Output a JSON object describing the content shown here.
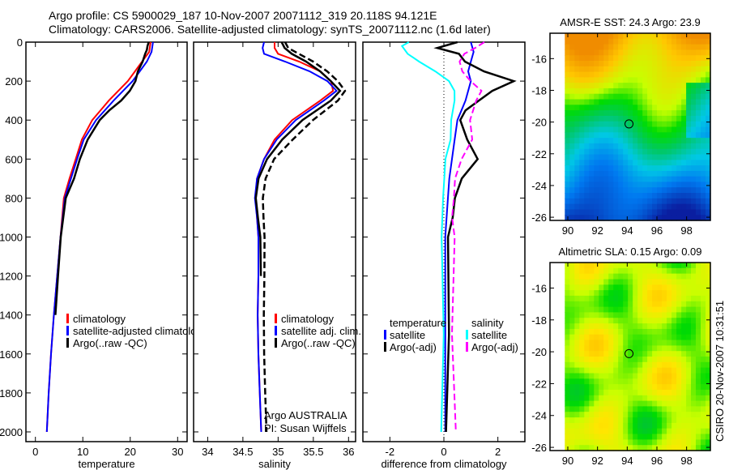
{
  "title_lines": [
    "Argo profile: CS 5900029_187 10-Nov-2007 20071112_319 20.118S 94.121E",
    "Climatology: CARS2006. Satellite-adjusted climatology: synTS_20071112.nc (1.6d later)"
  ],
  "credit": "CSIRO 20-Nov-2007 10:31:51",
  "colors": {
    "climatology": "#ff0000",
    "satellite": "#0000ff",
    "argo": "#000000",
    "salinity_satellite": "#00ffff",
    "salinity_argo": "#ff00ff"
  },
  "chart_data": [
    {
      "id": "temperature",
      "type": "line",
      "xlabel": "temperature",
      "ylabel": "",
      "xlim": [
        -2,
        32
      ],
      "ylim": [
        2050,
        0
      ],
      "xticks": [
        0,
        10,
        20,
        30
      ],
      "yticks": [
        0,
        200,
        400,
        600,
        800,
        1000,
        1200,
        1400,
        1600,
        1800,
        2000
      ],
      "legend": [
        "climatology",
        "satellite-adjusted climatology",
        "Argo(..raw -QC)"
      ],
      "legend_position": "lower-middle",
      "series": [
        {
          "name": "climatology",
          "color": "#ff0000",
          "style": "solid",
          "depth": [
            0,
            50,
            100,
            150,
            200,
            300,
            400,
            500,
            600,
            700,
            800,
            1000,
            1200,
            1400,
            1600,
            1800,
            2000
          ],
          "values": [
            24.3,
            24.0,
            22.5,
            21.0,
            19.5,
            15.5,
            12.0,
            9.8,
            8.5,
            7.2,
            6.0,
            5.3,
            4.6,
            3.9,
            3.3,
            2.8,
            2.4
          ]
        },
        {
          "name": "satellite-adjusted climatology",
          "color": "#0000ff",
          "style": "solid",
          "depth": [
            0,
            50,
            100,
            150,
            200,
            300,
            400,
            500,
            600,
            700,
            800,
            1000,
            1200,
            1400,
            1600,
            1800,
            2000
          ],
          "values": [
            24.8,
            24.5,
            23.5,
            22.0,
            20.5,
            16.5,
            12.8,
            10.2,
            8.8,
            7.5,
            6.2,
            5.3,
            4.6,
            3.9,
            3.3,
            2.8,
            2.4
          ]
        },
        {
          "name": "Argo(..raw -QC)",
          "color": "#000000",
          "style": "solid",
          "depth": [
            0,
            20,
            40,
            60,
            100,
            150,
            200,
            250,
            300,
            350,
            400,
            500,
            600,
            700,
            800,
            1000,
            1200,
            1400
          ],
          "values": [
            23.9,
            23.8,
            23.5,
            23.0,
            22.5,
            21.5,
            21.0,
            19.8,
            18.0,
            15.5,
            13.5,
            11.0,
            9.5,
            8.0,
            6.5,
            5.5,
            4.8,
            4.1
          ]
        }
      ]
    },
    {
      "id": "salinity",
      "type": "line",
      "xlabel": "salinity",
      "ylabel": "",
      "xlim": [
        33.8,
        36.1
      ],
      "ylim": [
        2050,
        0
      ],
      "xticks": [
        34,
        34.5,
        35,
        35.5,
        36
      ],
      "legend": [
        "climatology",
        "satellite adj. clim.",
        "Argo(..raw -QC)"
      ],
      "legend_position": "lower-right",
      "annotation": [
        "Argo AUSTRALIA",
        "PI: Susan Wijffels"
      ],
      "series": [
        {
          "name": "climatology",
          "color": "#ff0000",
          "style": "solid",
          "depth": [
            0,
            30,
            60,
            100,
            150,
            200,
            250,
            300,
            400,
            500,
            600,
            700,
            800,
            900,
            1000,
            1200,
            1400,
            1600,
            1800,
            2000
          ],
          "values": [
            34.95,
            34.95,
            35.0,
            35.3,
            35.6,
            35.75,
            35.78,
            35.6,
            35.2,
            34.95,
            34.8,
            34.7,
            34.68,
            34.7,
            34.72,
            34.72,
            34.71,
            34.72,
            34.74,
            34.76
          ]
        },
        {
          "name": "satellite adj. clim.",
          "color": "#0000ff",
          "style": "solid",
          "depth": [
            0,
            30,
            60,
            100,
            150,
            200,
            250,
            300,
            400,
            500,
            600,
            700,
            800,
            900,
            1000,
            1200,
            1400,
            1600,
            1800,
            2000
          ],
          "values": [
            34.8,
            34.78,
            34.8,
            35.1,
            35.45,
            35.7,
            35.83,
            35.65,
            35.25,
            34.98,
            34.8,
            34.7,
            34.67,
            34.7,
            34.72,
            34.72,
            34.71,
            34.72,
            34.74,
            34.76
          ]
        },
        {
          "name": "Argo(..raw -QC)",
          "color": "#000000",
          "style": "solid",
          "depth": [
            0,
            30,
            60,
            100,
            150,
            200,
            250,
            300,
            400,
            500,
            600,
            700,
            800,
            900,
            1000,
            1200
          ],
          "values": [
            35.05,
            35.1,
            35.2,
            35.4,
            35.6,
            35.75,
            35.88,
            35.75,
            35.35,
            35.05,
            34.85,
            34.72,
            34.68,
            34.72,
            34.74,
            34.75
          ]
        },
        {
          "name": "Argo(..raw -QC) dashed",
          "color": "#000000",
          "style": "dashed",
          "depth": [
            0,
            30,
            60,
            100,
            150,
            200,
            250,
            300,
            400,
            500,
            600,
            700,
            800,
            900,
            1000,
            1200,
            1400,
            1600,
            1800,
            2000
          ],
          "values": [
            35.1,
            35.15,
            35.3,
            35.5,
            35.7,
            35.85,
            35.95,
            35.85,
            35.5,
            35.2,
            34.95,
            34.82,
            34.78,
            34.8,
            34.8,
            34.8,
            34.8,
            34.81,
            34.82,
            34.83
          ]
        }
      ]
    },
    {
      "id": "difference",
      "type": "line",
      "xlabel": "difference from climatology",
      "ylabel": "",
      "xlim": [
        -3,
        3
      ],
      "ylim": [
        2050,
        0
      ],
      "xticks": [
        -2,
        0,
        2
      ],
      "legend_temperature": {
        "title": "temperature",
        "items": [
          "satellite",
          "Argo(-adj)"
        ]
      },
      "legend_salinity": {
        "title": "salinity",
        "items": [
          "satellite",
          "Argo(-adj)"
        ]
      },
      "legend_position": "lower",
      "series": [
        {
          "name": "temperature satellite",
          "color": "#0000ff",
          "style": "solid",
          "depth": [
            0,
            50,
            100,
            150,
            200,
            300,
            400,
            500,
            600,
            700,
            800,
            1000,
            1500,
            2000
          ],
          "values": [
            1.0,
            1.1,
            1.0,
            0.9,
            1.0,
            0.8,
            0.5,
            0.4,
            0.3,
            0.2,
            0.15,
            0.05,
            0.05,
            0.05
          ]
        },
        {
          "name": "temperature Argo(-adj)",
          "color": "#000000",
          "style": "solid",
          "depth": [
            0,
            30,
            60,
            100,
            150,
            200,
            250,
            300,
            350,
            400,
            500,
            600,
            700,
            800,
            900,
            1000,
            1500,
            2000
          ],
          "values": [
            0.5,
            -0.2,
            0.6,
            0.8,
            1.5,
            2.6,
            1.8,
            1.3,
            0.8,
            0.6,
            0.9,
            1.2,
            0.7,
            0.4,
            0.3,
            0.2,
            0.15,
            0.1
          ]
        },
        {
          "name": "salinity satellite",
          "color": "#00ffff",
          "style": "solid",
          "depth": [
            0,
            20,
            60,
            100,
            150,
            200,
            250,
            300,
            400,
            500,
            600,
            700,
            800,
            1000,
            1500,
            2000
          ],
          "values": [
            -1.3,
            -1.5,
            -1.3,
            -0.9,
            -0.3,
            0.2,
            0.4,
            0.4,
            0.3,
            0.2,
            0.1,
            0.0,
            -0.05,
            -0.05,
            -0.05,
            -0.05
          ]
        },
        {
          "name": "salinity Argo(-adj)",
          "color": "#ff00ff",
          "style": "dashed",
          "depth": [
            0,
            30,
            60,
            100,
            150,
            200,
            250,
            300,
            400,
            500,
            600,
            700,
            800,
            900,
            1000,
            1500,
            2000
          ],
          "values": [
            1.5,
            1.2,
            0.8,
            0.6,
            0.7,
            1.0,
            1.4,
            1.2,
            1.0,
            1.0,
            0.7,
            0.4,
            0.35,
            0.35,
            0.35,
            0.35,
            0.4
          ]
        }
      ]
    },
    {
      "id": "sst-map",
      "type": "heatmap",
      "title": "AMSR-E SST: 24.3 Argo: 23.9",
      "xlim": [
        88.8,
        99.6
      ],
      "ylim": [
        -26.2,
        -14.4
      ],
      "xticks": [
        90,
        92,
        94,
        96,
        98
      ],
      "yticks": [
        -16,
        -18,
        -20,
        -22,
        -24,
        -26
      ],
      "marker": {
        "lon": 94.121,
        "lat": -20.118
      },
      "colormap": "orange-yellow-green-cyan-blue"
    },
    {
      "id": "sla-map",
      "type": "heatmap",
      "title": "Altimetric SLA: 0.15 Argo: 0.09",
      "xlim": [
        88.8,
        99.6
      ],
      "ylim": [
        -26.2,
        -14.4
      ],
      "xticks": [
        90,
        92,
        94,
        96,
        98
      ],
      "yticks": [
        -16,
        -18,
        -20,
        -22,
        -24,
        -26
      ],
      "marker": {
        "lon": 94.121,
        "lat": -20.118
      },
      "colormap": "green-yellow-orange"
    }
  ]
}
